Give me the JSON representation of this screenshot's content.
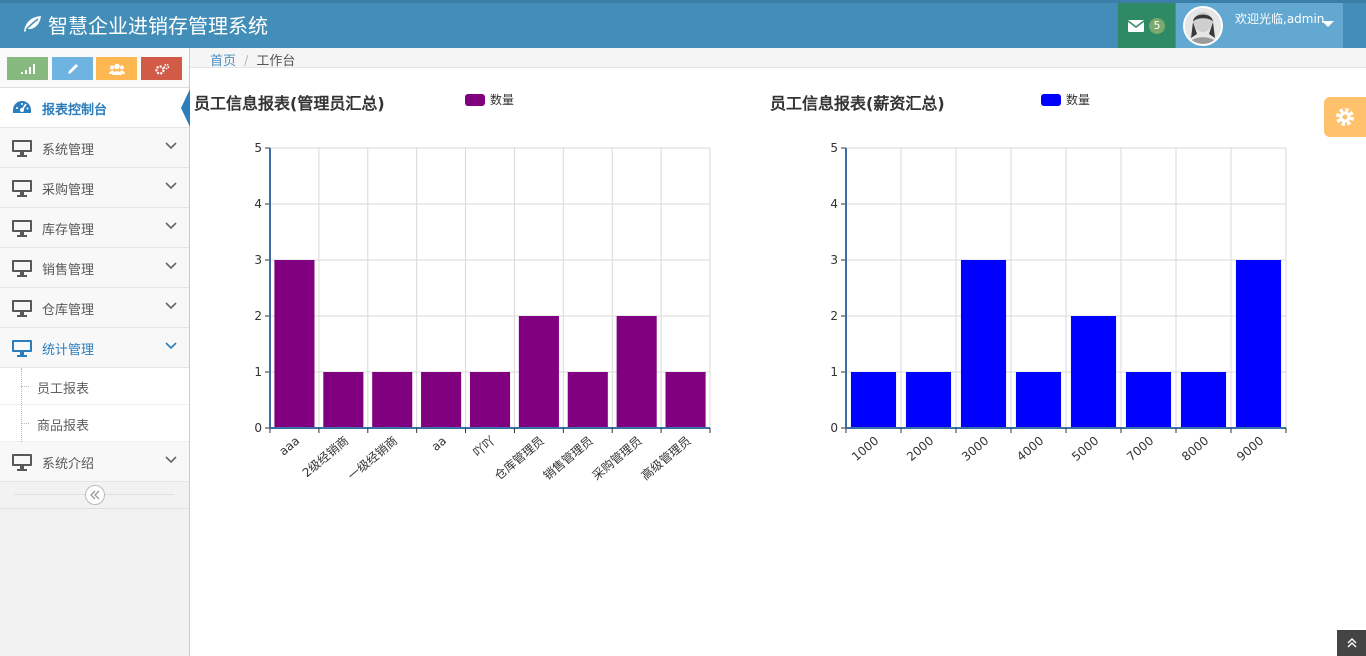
{
  "app": {
    "title": "智慧企业进销存管理系统"
  },
  "header": {
    "mail_count": "5",
    "welcome": "欢迎光临,admin"
  },
  "sidebar": {
    "items": [
      {
        "label": "报表控制台"
      },
      {
        "label": "系统管理"
      },
      {
        "label": "采购管理"
      },
      {
        "label": "库存管理"
      },
      {
        "label": "销售管理"
      },
      {
        "label": "仓库管理"
      },
      {
        "label": "统计管理"
      },
      {
        "label": "系统介绍"
      }
    ],
    "submenu": [
      {
        "label": "员工报表"
      },
      {
        "label": "商品报表"
      }
    ]
  },
  "breadcrumb": {
    "home": "首页",
    "current": "工作台"
  },
  "colors": {
    "navbar": "#438eb9",
    "purple_series": "#800080",
    "blue_series": "#0000ff"
  },
  "chart_data": [
    {
      "type": "bar",
      "title": "员工信息报表(管理员汇总)",
      "categories": [
        "aaa",
        "2级经销商",
        "一级经销商",
        "aa",
        "吖吖",
        "仓库管理员",
        "销售管理员",
        "采购管理员",
        "高级管理员"
      ],
      "series": [
        {
          "name": "数量",
          "values": [
            3,
            1,
            1,
            1,
            1,
            2,
            1,
            2,
            1
          ],
          "color": "#800080"
        }
      ],
      "ylim": [
        0,
        5
      ],
      "yticks": [
        0,
        1,
        2,
        3,
        4,
        5
      ],
      "grid": true,
      "legend": "top"
    },
    {
      "type": "bar",
      "title": "员工信息报表(薪资汇总)",
      "categories": [
        "1000",
        "2000",
        "3000",
        "4000",
        "5000",
        "7000",
        "8000",
        "9000"
      ],
      "series": [
        {
          "name": "数量",
          "values": [
            1,
            1,
            3,
            1,
            2,
            1,
            1,
            3
          ],
          "color": "#0000ff"
        }
      ],
      "ylim": [
        0,
        5
      ],
      "yticks": [
        0,
        1,
        2,
        3,
        4,
        5
      ],
      "grid": true,
      "legend": "top"
    }
  ]
}
